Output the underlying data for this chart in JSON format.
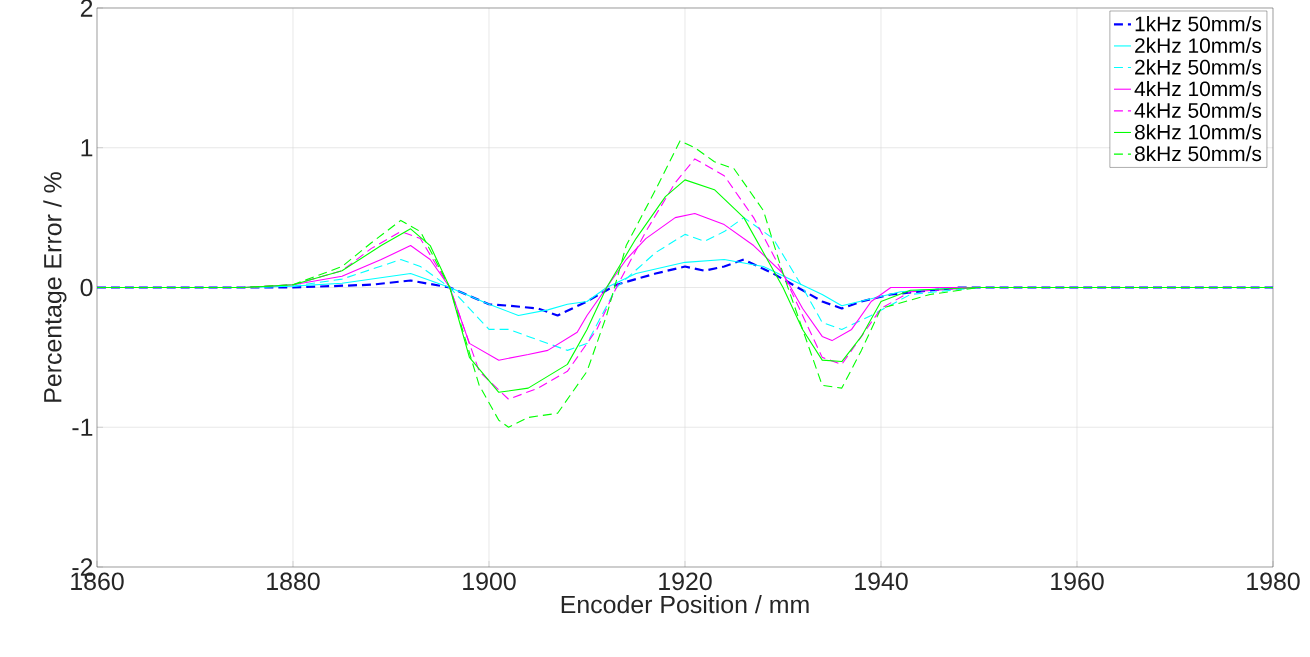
{
  "chart_data": {
    "type": "line",
    "xlabel": "Encoder Position / mm",
    "ylabel": "Percentage Error / %",
    "xlim": [
      1860,
      1980
    ],
    "xticks": [
      1860,
      1880,
      1900,
      1920,
      1940,
      1960,
      1980
    ],
    "ylim": [
      -2,
      2
    ],
    "yticks": [
      -2,
      -1,
      0,
      1,
      2
    ],
    "grid": true,
    "legend": "top right",
    "marker": "none",
    "series": [
      {
        "name": "1kHz 50mm/s",
        "color": "#0000ff",
        "line_style": "dashed",
        "x": [
          1860,
          1880,
          1888,
          1892,
          1896,
          1900,
          1902,
          1905,
          1907,
          1910,
          1913,
          1917,
          1920,
          1922,
          1924,
          1926,
          1929,
          1932,
          1934,
          1936,
          1938,
          1941,
          1948,
          1980
        ],
        "values": [
          0,
          0,
          0.02,
          0.05,
          0,
          -0.12,
          -0.13,
          -0.15,
          -0.2,
          -0.1,
          0.02,
          0.1,
          0.15,
          0.12,
          0.15,
          0.2,
          0.1,
          -0.02,
          -0.1,
          -0.15,
          -0.1,
          -0.05,
          0,
          0
        ]
      },
      {
        "name": "2kHz 10mm/s",
        "color": "#00ffff",
        "line_style": "solid",
        "x": [
          1860,
          1875,
          1880,
          1885,
          1892,
          1896,
          1900,
          1903,
          1906,
          1908,
          1910,
          1912,
          1915,
          1920,
          1924,
          1928,
          1931,
          1934,
          1936,
          1939,
          1942,
          1948,
          1980
        ],
        "values": [
          0,
          0,
          0.01,
          0.03,
          0.1,
          0,
          -0.12,
          -0.2,
          -0.16,
          -0.12,
          -0.1,
          0,
          0.1,
          0.18,
          0.2,
          0.15,
          0.05,
          -0.05,
          -0.13,
          -0.08,
          -0.03,
          0,
          0
        ]
      },
      {
        "name": "2kHz 50mm/s",
        "color": "#00ffff",
        "line_style": "dashed",
        "x": [
          1860,
          1875,
          1880,
          1885,
          1891,
          1893,
          1896,
          1900,
          1902,
          1904,
          1908,
          1910,
          1913,
          1917,
          1920,
          1922,
          1924,
          1926,
          1929,
          1932,
          1934,
          1936,
          1939,
          1943,
          1950,
          1980
        ],
        "values": [
          0,
          0,
          0.01,
          0.06,
          0.2,
          0.15,
          0,
          -0.3,
          -0.3,
          -0.35,
          -0.45,
          -0.4,
          0,
          0.25,
          0.38,
          0.33,
          0.4,
          0.5,
          0.35,
          0,
          -0.25,
          -0.3,
          -0.2,
          -0.05,
          0,
          0
        ]
      },
      {
        "name": "4kHz 10mm/s",
        "color": "#ff00ff",
        "line_style": "solid",
        "x": [
          1860,
          1875,
          1880,
          1885,
          1889,
          1892,
          1894,
          1896,
          1898,
          1901,
          1904,
          1906,
          1909,
          1910,
          1912,
          1914,
          1916,
          1919,
          1921,
          1924,
          1927,
          1930,
          1932,
          1934,
          1935,
          1937,
          1939,
          1941,
          1980
        ],
        "values": [
          0,
          0,
          0.02,
          0.08,
          0.2,
          0.3,
          0.2,
          0,
          -0.4,
          -0.52,
          -0.48,
          -0.45,
          -0.32,
          -0.2,
          0,
          0.2,
          0.35,
          0.5,
          0.53,
          0.45,
          0.3,
          0.1,
          -0.15,
          -0.35,
          -0.38,
          -0.3,
          -0.1,
          0,
          0
        ]
      },
      {
        "name": "4kHz 50mm/s",
        "color": "#ff00ff",
        "line_style": "dashed",
        "x": [
          1860,
          1875,
          1880,
          1885,
          1888,
          1891,
          1893,
          1896,
          1899,
          1902,
          1905,
          1908,
          1911,
          1913,
          1916,
          1919,
          1921,
          1924,
          1927,
          1930,
          1932,
          1934,
          1936,
          1937,
          1940,
          1943,
          1950,
          1980
        ],
        "values": [
          0,
          0,
          0.02,
          0.12,
          0.28,
          0.4,
          0.35,
          0,
          -0.6,
          -0.8,
          -0.72,
          -0.6,
          -0.3,
          0,
          0.4,
          0.75,
          0.92,
          0.8,
          0.5,
          0.1,
          -0.2,
          -0.5,
          -0.55,
          -0.45,
          -0.15,
          -0.03,
          0,
          0
        ]
      },
      {
        "name": "8kHz 10mm/s",
        "color": "#00ff00",
        "line_style": "solid",
        "x": [
          1860,
          1875,
          1880,
          1885,
          1889,
          1892,
          1894,
          1896,
          1898,
          1901,
          1904,
          1908,
          1910,
          1912,
          1915,
          1918,
          1920,
          1923,
          1926,
          1928,
          1930,
          1932,
          1934,
          1936,
          1938,
          1940,
          1943,
          1950,
          1980
        ],
        "values": [
          0,
          0,
          0.02,
          0.12,
          0.3,
          0.42,
          0.3,
          0,
          -0.5,
          -0.75,
          -0.72,
          -0.55,
          -0.3,
          0,
          0.35,
          0.65,
          0.77,
          0.7,
          0.5,
          0.25,
          0,
          -0.3,
          -0.52,
          -0.53,
          -0.35,
          -0.1,
          -0.02,
          0,
          0
        ]
      },
      {
        "name": "8kHz 50mm/s",
        "color": "#00ff00",
        "line_style": "dashed",
        "x": [
          1860,
          1875,
          1880,
          1885,
          1888,
          1891,
          1893,
          1896,
          1899,
          1901,
          1902,
          1904,
          1907,
          1910,
          1912,
          1914,
          1917,
          1919.5,
          1921,
          1923,
          1925,
          1928,
          1930,
          1932,
          1934,
          1936,
          1938,
          1940,
          1945,
          1950,
          1980
        ],
        "values": [
          0,
          0,
          0.02,
          0.15,
          0.32,
          0.48,
          0.4,
          0,
          -0.7,
          -0.95,
          -1.0,
          -0.93,
          -0.9,
          -0.6,
          -0.2,
          0.3,
          0.7,
          1.05,
          1.0,
          0.9,
          0.85,
          0.55,
          0.1,
          -0.3,
          -0.7,
          -0.72,
          -0.45,
          -0.15,
          -0.05,
          0,
          0
        ]
      }
    ]
  }
}
